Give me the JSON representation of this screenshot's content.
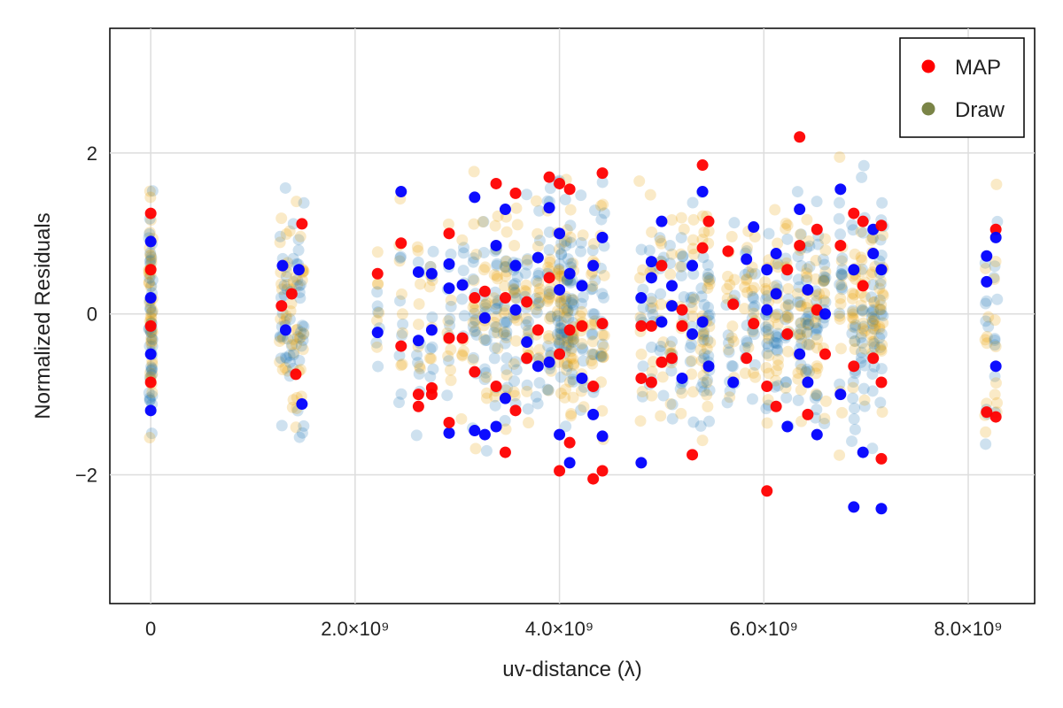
{
  "chart_data": {
    "type": "scatter",
    "title": "",
    "xlabel": "uv-distance (λ)",
    "ylabel": "Normalized Residuals",
    "xlim": [
      -400000000.0,
      8650000000.0
    ],
    "ylim": [
      -3.6,
      3.55
    ],
    "x_ticks": [
      {
        "value": 0,
        "label": "0"
      },
      {
        "value": 2000000000.0,
        "label": "2.0×10⁹"
      },
      {
        "value": 4000000000.0,
        "label": "4.0×10⁹"
      },
      {
        "value": 6000000000.0,
        "label": "6.0×10⁹"
      },
      {
        "value": 8000000000.0,
        "label": "8.0×10⁹"
      }
    ],
    "y_ticks": [
      {
        "value": -2,
        "label": "−2"
      },
      {
        "value": 0,
        "label": "0"
      },
      {
        "value": 2,
        "label": "2"
      }
    ],
    "grid": true,
    "legend_position": "top-right",
    "legend": [
      {
        "label": "MAP",
        "color": "#ff0000"
      },
      {
        "label": "Draw",
        "color": "#7a8447"
      }
    ],
    "series": [
      {
        "name": "MAP",
        "colors": [
          "#ff0000",
          "#0000ff"
        ],
        "points": [
          [
            0.0,
            1.25
          ],
          [
            0.0,
            0.9
          ],
          [
            0.0,
            0.55
          ],
          [
            0.0,
            0.2
          ],
          [
            0.0,
            -0.15
          ],
          [
            0.0,
            -0.5
          ],
          [
            0.0,
            -0.85
          ],
          [
            0.0,
            -1.2
          ],
          [
            1280000000.0,
            0.1
          ],
          [
            1320000000.0,
            -0.2
          ],
          [
            1380000000.0,
            0.25
          ],
          [
            1450000000.0,
            0.55
          ],
          [
            1480000000.0,
            1.12
          ],
          [
            1480000000.0,
            -1.12
          ],
          [
            1420000000.0,
            -0.75
          ],
          [
            1290000000.0,
            0.6
          ],
          [
            2220000000.0,
            0.5
          ],
          [
            2220000000.0,
            -0.23
          ],
          [
            2450000000.0,
            0.88
          ],
          [
            2450000000.0,
            1.52
          ],
          [
            2450000000.0,
            -0.4
          ],
          [
            2620000000.0,
            0.52
          ],
          [
            2620000000.0,
            -1.0
          ],
          [
            2620000000.0,
            -0.33
          ],
          [
            2620000000.0,
            -1.15
          ],
          [
            2750000000.0,
            0.5
          ],
          [
            2750000000.0,
            -0.92
          ],
          [
            2750000000.0,
            -0.2
          ],
          [
            2750000000.0,
            -1.0
          ],
          [
            2920000000.0,
            0.62
          ],
          [
            2920000000.0,
            1.0
          ],
          [
            2920000000.0,
            0.32
          ],
          [
            2920000000.0,
            -0.3
          ],
          [
            2920000000.0,
            -1.48
          ],
          [
            2920000000.0,
            -1.35
          ],
          [
            3050000000.0,
            0.36
          ],
          [
            3050000000.0,
            -0.3
          ],
          [
            3170000000.0,
            1.45
          ],
          [
            3170000000.0,
            -0.72
          ],
          [
            3170000000.0,
            -1.45
          ],
          [
            3170000000.0,
            0.2
          ],
          [
            3270000000.0,
            -1.5
          ],
          [
            3270000000.0,
            0.28
          ],
          [
            3270000000.0,
            -0.05
          ],
          [
            3380000000.0,
            1.62
          ],
          [
            3380000000.0,
            0.85
          ],
          [
            3380000000.0,
            -0.9
          ],
          [
            3380000000.0,
            -1.4
          ],
          [
            3470000000.0,
            -1.72
          ],
          [
            3470000000.0,
            1.3
          ],
          [
            3470000000.0,
            0.2
          ],
          [
            3470000000.0,
            -1.05
          ],
          [
            3570000000.0,
            1.5
          ],
          [
            3570000000.0,
            0.6
          ],
          [
            3570000000.0,
            -1.2
          ],
          [
            3570000000.0,
            0.05
          ],
          [
            3680000000.0,
            0.15
          ],
          [
            3680000000.0,
            -0.35
          ],
          [
            3680000000.0,
            -0.55
          ],
          [
            3790000000.0,
            0.7
          ],
          [
            3790000000.0,
            -0.2
          ],
          [
            3790000000.0,
            -0.65
          ],
          [
            3900000000.0,
            1.7
          ],
          [
            3900000000.0,
            1.32
          ],
          [
            3900000000.0,
            0.45
          ],
          [
            3900000000.0,
            -0.6
          ],
          [
            4000000000.0,
            1.62
          ],
          [
            4000000000.0,
            1.0
          ],
          [
            4000000000.0,
            -1.95
          ],
          [
            4000000000.0,
            -1.5
          ],
          [
            4000000000.0,
            -0.5
          ],
          [
            4000000000.0,
            0.3
          ],
          [
            4100000000.0,
            1.55
          ],
          [
            4100000000.0,
            -1.85
          ],
          [
            4100000000.0,
            -1.6
          ],
          [
            4100000000.0,
            0.5
          ],
          [
            4100000000.0,
            -0.2
          ],
          [
            4220000000.0,
            0.35
          ],
          [
            4220000000.0,
            -0.15
          ],
          [
            4220000000.0,
            -0.8
          ],
          [
            4330000000.0,
            -2.05
          ],
          [
            4330000000.0,
            -1.25
          ],
          [
            4330000000.0,
            -0.9
          ],
          [
            4330000000.0,
            0.6
          ],
          [
            4420000000.0,
            1.75
          ],
          [
            4420000000.0,
            0.95
          ],
          [
            4420000000.0,
            -0.12
          ],
          [
            4420000000.0,
            -1.52
          ],
          [
            4420000000.0,
            -1.95
          ],
          [
            4800000000.0,
            -1.85
          ],
          [
            4800000000.0,
            -0.8
          ],
          [
            4800000000.0,
            0.2
          ],
          [
            4800000000.0,
            -0.15
          ],
          [
            4900000000.0,
            0.65
          ],
          [
            4900000000.0,
            -0.85
          ],
          [
            4900000000.0,
            0.45
          ],
          [
            4900000000.0,
            -0.15
          ],
          [
            5000000000.0,
            1.15
          ],
          [
            5000000000.0,
            0.6
          ],
          [
            5000000000.0,
            -0.1
          ],
          [
            5000000000.0,
            -0.6
          ],
          [
            5100000000.0,
            0.1
          ],
          [
            5100000000.0,
            -0.55
          ],
          [
            5100000000.0,
            0.35
          ],
          [
            5200000000.0,
            0.05
          ],
          [
            5200000000.0,
            -0.8
          ],
          [
            5200000000.0,
            -0.15
          ],
          [
            5300000000.0,
            0.6
          ],
          [
            5300000000.0,
            -1.75
          ],
          [
            5300000000.0,
            -0.25
          ],
          [
            5400000000.0,
            1.85
          ],
          [
            5400000000.0,
            1.52
          ],
          [
            5400000000.0,
            0.82
          ],
          [
            5400000000.0,
            -0.1
          ],
          [
            5460000000.0,
            1.15
          ],
          [
            5460000000.0,
            -0.65
          ],
          [
            5650000000.0,
            0.78
          ],
          [
            5700000000.0,
            -0.85
          ],
          [
            5700000000.0,
            0.12
          ],
          [
            5830000000.0,
            0.68
          ],
          [
            5830000000.0,
            -0.55
          ],
          [
            5900000000.0,
            1.08
          ],
          [
            5900000000.0,
            -0.12
          ],
          [
            6030000000.0,
            0.55
          ],
          [
            6030000000.0,
            -0.9
          ],
          [
            6030000000.0,
            0.05
          ],
          [
            6030000000.0,
            -2.2
          ],
          [
            6120000000.0,
            0.75
          ],
          [
            6120000000.0,
            -1.15
          ],
          [
            6120000000.0,
            0.25
          ],
          [
            6230000000.0,
            0.55
          ],
          [
            6230000000.0,
            -1.4
          ],
          [
            6230000000.0,
            -0.25
          ],
          [
            6350000000.0,
            1.3
          ],
          [
            6350000000.0,
            0.85
          ],
          [
            6350000000.0,
            -0.5
          ],
          [
            6350000000.0,
            2.2
          ],
          [
            6430000000.0,
            0.3
          ],
          [
            6430000000.0,
            -1.25
          ],
          [
            6430000000.0,
            -0.85
          ],
          [
            6520000000.0,
            1.05
          ],
          [
            6520000000.0,
            -1.5
          ],
          [
            6520000000.0,
            0.05
          ],
          [
            6600000000.0,
            0.0
          ],
          [
            6600000000.0,
            -0.5
          ],
          [
            6750000000.0,
            1.55
          ],
          [
            6750000000.0,
            0.85
          ],
          [
            6750000000.0,
            -1.0
          ],
          [
            6880000000.0,
            1.25
          ],
          [
            6880000000.0,
            -2.4
          ],
          [
            6880000000.0,
            -0.65
          ],
          [
            6880000000.0,
            0.55
          ],
          [
            6970000000.0,
            1.15
          ],
          [
            6970000000.0,
            -1.72
          ],
          [
            6970000000.0,
            0.35
          ],
          [
            7070000000.0,
            1.05
          ],
          [
            7070000000.0,
            -0.55
          ],
          [
            7070000000.0,
            0.75
          ],
          [
            7150000000.0,
            -1.8
          ],
          [
            7150000000.0,
            -2.42
          ],
          [
            7150000000.0,
            -0.85
          ],
          [
            7150000000.0,
            0.55
          ],
          [
            7150000000.0,
            1.1
          ],
          [
            8180000000.0,
            0.72
          ],
          [
            8180000000.0,
            -1.22
          ],
          [
            8180000000.0,
            0.4
          ],
          [
            8270000000.0,
            1.05
          ],
          [
            8270000000.0,
            0.95
          ],
          [
            8270000000.0,
            -1.28
          ],
          [
            8270000000.0,
            -0.65
          ]
        ]
      },
      {
        "name": "Draw",
        "colors": [
          "#1f77b4",
          "#e69f00"
        ],
        "opacity": 0.22,
        "points_note": ""
      }
    ]
  }
}
